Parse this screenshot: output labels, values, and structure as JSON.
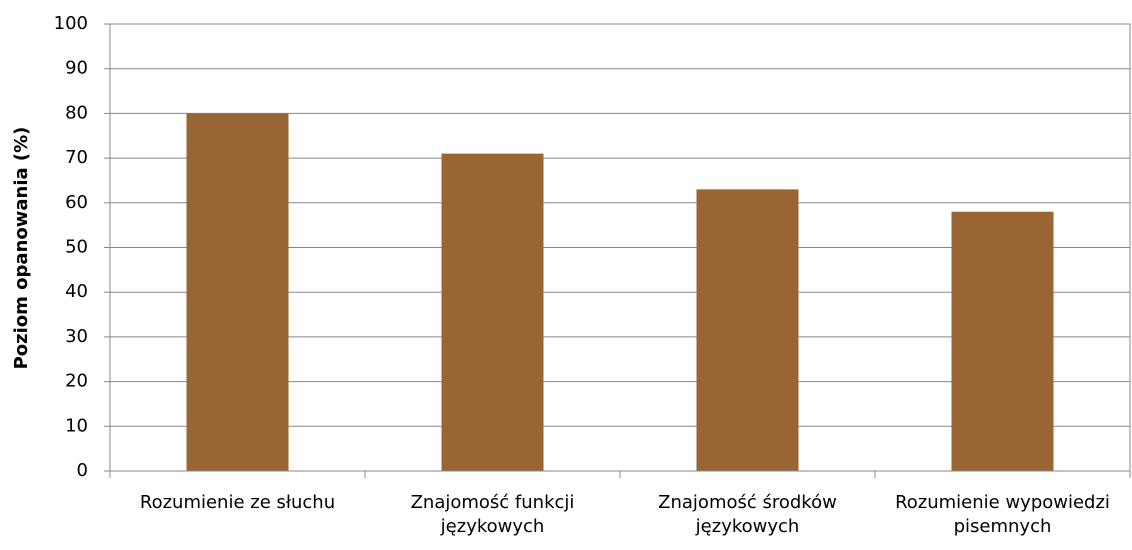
{
  "chart_data": {
    "type": "bar",
    "y_label": "Poziom opanowania (%)",
    "categories": [
      "Rozumienie ze słuchu",
      "Znajomość funkcji językowych",
      "Znajomość środków językowych",
      "Rozumienie wypowiedzi pisemnych"
    ],
    "values": [
      80,
      71,
      63,
      58
    ],
    "color": "#996633",
    "ylim": [
      0,
      100
    ],
    "yticks": [
      0,
      10,
      20,
      30,
      40,
      50,
      60,
      70,
      80,
      90,
      100
    ],
    "grid": true
  }
}
